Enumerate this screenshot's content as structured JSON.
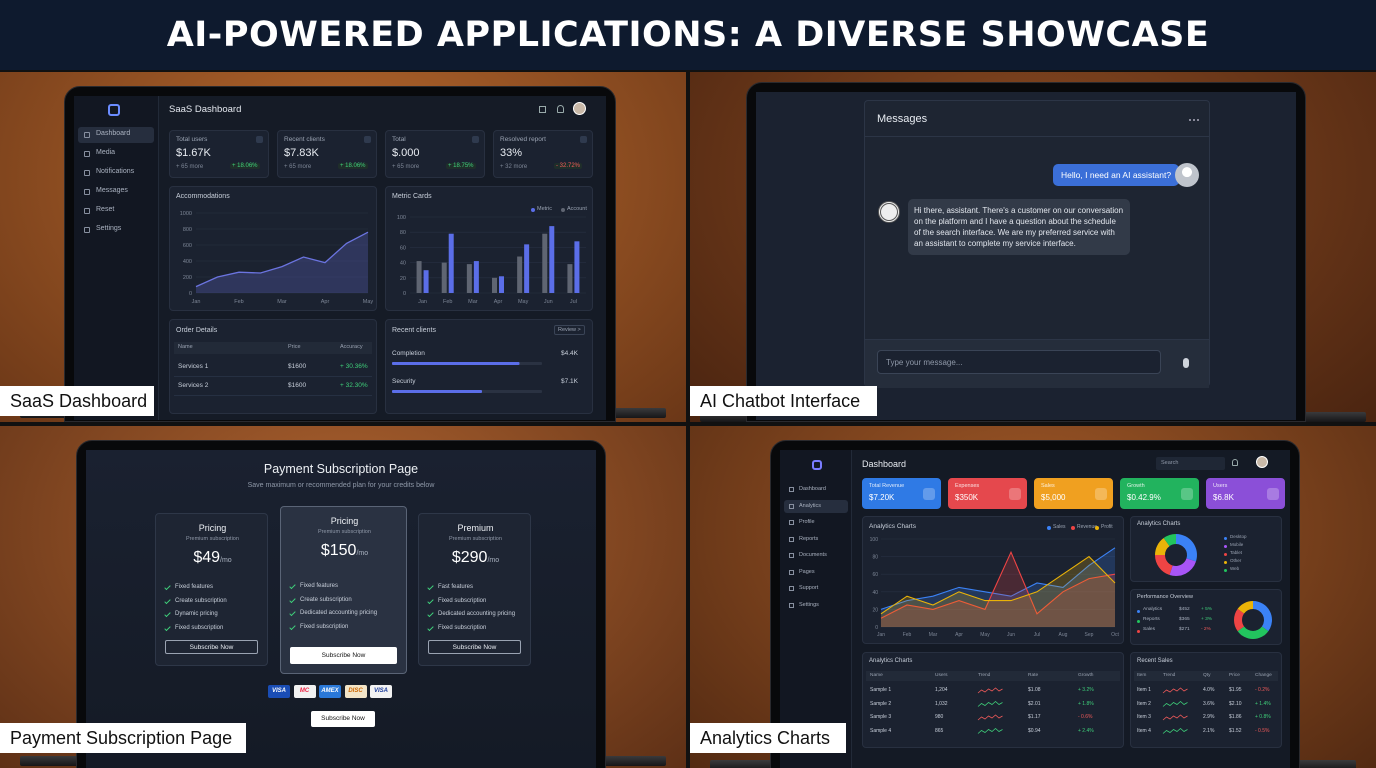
{
  "title": "AI-POWERED APPLICATIONS: A DIVERSE SHOWCASE",
  "saas": {
    "caption": "SaaS Dashboard",
    "header": "SaaS Dashboard",
    "nav": [
      "Dashboard",
      "Media",
      "Notifications",
      "Messages",
      "Reset",
      "Settings"
    ],
    "stats": [
      {
        "label": "Total users",
        "value": "$1.67K",
        "note": "+ 65 more",
        "delta": "+ 18.06%"
      },
      {
        "label": "Recent clients",
        "value": "$7.83K",
        "note": "+ 65 more",
        "delta": "+ 18.06%"
      },
      {
        "label": "Total",
        "value": "$.000",
        "note": "+ 65 more",
        "delta": "+ 18.75%"
      },
      {
        "label": "Resolved report",
        "value": "33%",
        "note": "+ 32 more",
        "delta": "- 32.72%"
      }
    ],
    "line_chart": {
      "type": "line",
      "title": "Accommodations",
      "categories": [
        "Jan",
        null,
        "Feb",
        null,
        "Mar",
        null,
        "Apr",
        null,
        "May"
      ],
      "values": [
        80,
        200,
        260,
        250,
        330,
        450,
        380,
        620,
        760
      ],
      "ylim": [
        0,
        1000
      ],
      "yticks": [
        0,
        200,
        400,
        600,
        800,
        1000
      ],
      "color": "#6b74e0"
    },
    "bar_chart": {
      "type": "bar",
      "title": "Metric Cards",
      "categories": [
        "Jan",
        "Feb",
        "Mar",
        "Apr",
        "May",
        "Jun",
        "Jul"
      ],
      "series": [
        {
          "name": "Metric",
          "color": "#5b6ee8",
          "values": [
            30,
            78,
            42,
            22,
            64,
            88,
            68
          ]
        },
        {
          "name": "Account",
          "color": "#5f6572",
          "values": [
            42,
            40,
            38,
            20,
            48,
            78,
            38
          ]
        }
      ],
      "ylim": [
        0,
        100
      ],
      "yticks": [
        0,
        20,
        40,
        60,
        80,
        100
      ]
    },
    "orders": {
      "title": "Order Details",
      "columns": [
        "Name",
        "Price",
        "Accuracy"
      ],
      "rows": [
        [
          "Services 1",
          "$1600",
          "+ 30.36%"
        ],
        [
          "Services 2",
          "$1600",
          "+ 32.30%"
        ]
      ]
    },
    "clients": {
      "title": "Recent clients",
      "button": "Review >",
      "xlim": [
        0,
        100
      ],
      "rows": [
        {
          "name": "Completion",
          "value": "$4.4K",
          "progress": 85
        },
        {
          "name": "Security",
          "value": "$7.1K",
          "progress": 60
        }
      ]
    }
  },
  "chat": {
    "caption": "AI Chatbot Interface",
    "header": "Messages",
    "user_message": "Hello, I need an AI assistant?",
    "bot_message": "Hi there, assistant. There's a customer on our conversation on the platform and I have a question about the schedule of the search interface. We are my preferred service with an assistant to complete my service interface.",
    "placeholder": "Type your message..."
  },
  "payment": {
    "caption": "Payment Subscription Page",
    "title": "Payment Subscription Page",
    "subtitle": "Save maximum or recommended plan for your credits below",
    "plans": [
      {
        "name": "Pricing",
        "subtitle": "Premium subscription",
        "price": "$49",
        "unit": "/mo",
        "features": [
          "Fixed features",
          "Create subscription",
          "Dynamic pricing",
          "Fixed subscription"
        ],
        "button": "Subscribe Now"
      },
      {
        "name": "Pricing",
        "subtitle": "Premium subscription",
        "price": "$150",
        "unit": "/mo",
        "features": [
          "Fixed features",
          "Create subscription",
          "Dedicated accounting pricing",
          "Fixed subscription"
        ],
        "button": "Subscribe Now"
      },
      {
        "name": "Premium",
        "subtitle": "Premium subscription",
        "price": "$290",
        "unit": "/mo",
        "features": [
          "Fast features",
          "Fixed subscription",
          "Dedicated accounting pricing",
          "Fixed subscription"
        ],
        "button": "Subscribe Now"
      }
    ],
    "cards": [
      "VISA",
      "MC",
      "AMEX",
      "DISC",
      "VISA"
    ],
    "button": "Subscribe Now"
  },
  "analytics": {
    "caption": "Analytics Charts",
    "header": "Dashboard",
    "search": "Search",
    "nav": [
      "Dashboard",
      "Analytics",
      "Profile",
      "Reports",
      "Documents",
      "Pages",
      "Support",
      "Settings"
    ],
    "kpis": [
      {
        "label": "Total Revenue",
        "value": "$7.20K",
        "color": "#2f7ae5"
      },
      {
        "label": "Expenses",
        "value": "$350K",
        "color": "#e5484d"
      },
      {
        "label": "Sales",
        "value": "$5,000",
        "color": "#f0a020"
      },
      {
        "label": "Growth",
        "value": "$0.42.9%",
        "color": "#22b35e"
      },
      {
        "label": "Users",
        "value": "$6.8K",
        "color": "#8b4fd8"
      }
    ],
    "area_chart": {
      "type": "area",
      "title": "Analytics Charts",
      "categories": [
        "Jan",
        "Feb",
        "Mar",
        "Apr",
        "May",
        "Jun",
        "Jul",
        "Aug",
        "Sep",
        "Oct"
      ],
      "series": [
        {
          "name": "Sales",
          "color": "#3b82f6",
          "values": [
            20,
            30,
            35,
            45,
            40,
            35,
            50,
            45,
            70,
            90
          ]
        },
        {
          "name": "Revenue",
          "color": "#ef4444",
          "values": [
            10,
            25,
            20,
            30,
            20,
            85,
            15,
            40,
            55,
            60
          ]
        },
        {
          "name": "Profit",
          "color": "#eab308",
          "values": [
            15,
            35,
            25,
            40,
            30,
            30,
            40,
            60,
            80,
            50
          ]
        }
      ],
      "ylim": [
        0,
        100
      ],
      "yticks": [
        0,
        20,
        40,
        60,
        80,
        100
      ]
    },
    "donut1": {
      "type": "pie",
      "title": "Analytics Charts",
      "categories": [
        "Desktop",
        "Mobile",
        "Tablet",
        "Other",
        "Web"
      ],
      "values": [
        30,
        25,
        20,
        15,
        10
      ],
      "colors": [
        "#3b82f6",
        "#a855f7",
        "#ef4444",
        "#eab308",
        "#22c55e"
      ]
    },
    "donut2": {
      "type": "pie",
      "title": "Performance Overview",
      "categories": [
        "Analytics",
        "Reports",
        "Sales",
        "Other"
      ],
      "values": [
        35,
        30,
        20,
        15
      ],
      "colors": [
        "#3b82f6",
        "#22c55e",
        "#ef4444",
        "#eab308"
      ],
      "rows": [
        [
          "Analytics",
          "$452",
          "+ 5%"
        ],
        [
          "Reports",
          "$365",
          "+ 3%"
        ],
        [
          "Sales",
          "$271",
          "- 2%"
        ]
      ]
    },
    "table1": {
      "title": "Analytics Charts",
      "columns": [
        "Name",
        "Users",
        "Trend",
        "Rate",
        "Growth"
      ],
      "rows": [
        [
          "Sample 1",
          "1,204",
          "$1.08",
          "+ 3.2%"
        ],
        [
          "Sample 2",
          "1,032",
          "$2.01",
          "+ 1.8%"
        ],
        [
          "Sample 3",
          "980",
          "$1.17",
          "- 0.6%"
        ],
        [
          "Sample 4",
          "865",
          "$0.94",
          "+ 2.4%"
        ]
      ]
    },
    "table2": {
      "title": "Recent Sales",
      "columns": [
        "Item",
        "Trend",
        "Qty",
        "Price",
        "Change"
      ],
      "rows": [
        [
          "Item 1",
          "4.0%",
          "$1.95",
          "- 0.2%"
        ],
        [
          "Item 2",
          "3.6%",
          "$2.10",
          "+ 1.4%"
        ],
        [
          "Item 3",
          "2.9%",
          "$1.86",
          "+ 0.8%"
        ],
        [
          "Item 4",
          "2.1%",
          "$1.52",
          "- 0.5%"
        ]
      ]
    }
  }
}
